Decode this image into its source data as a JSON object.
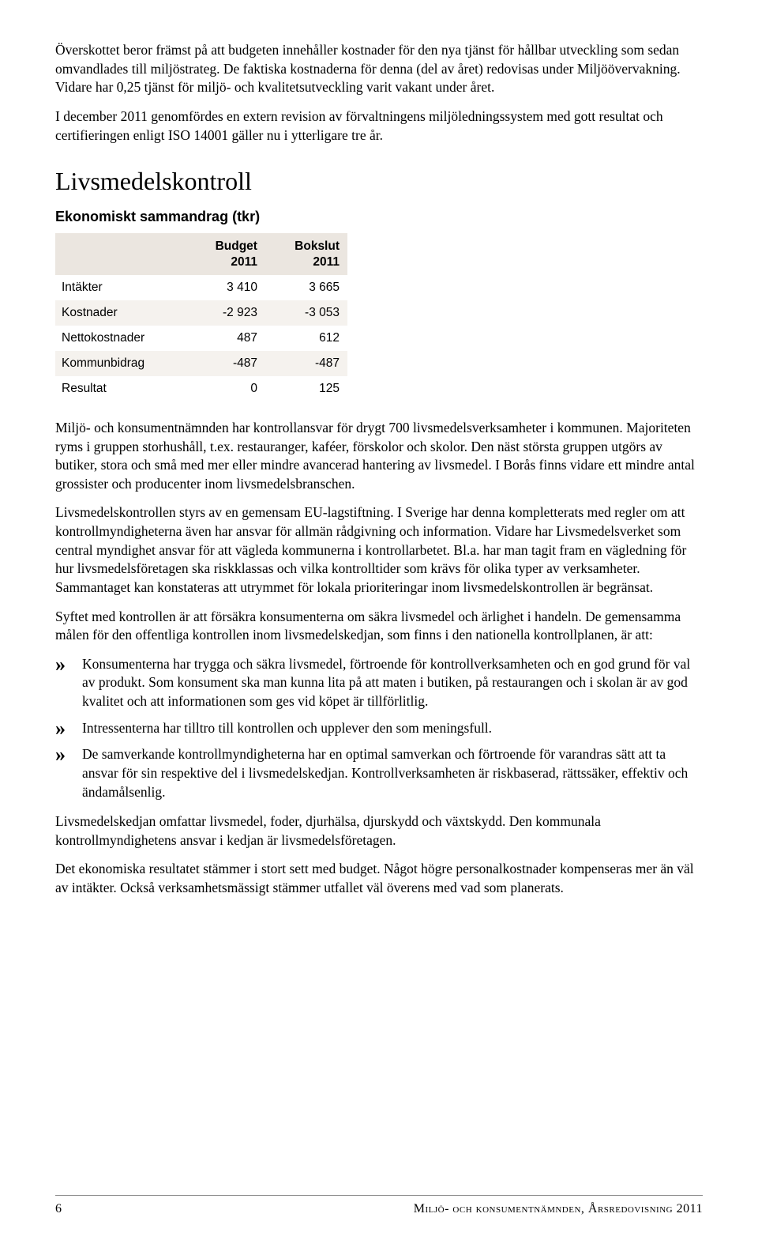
{
  "intro_paragraphs": {
    "p1": "Överskottet beror främst på att budgeten innehåller kostnader för den nya tjänst för hållbar utveckling som sedan omvandlades till miljöstrateg. De faktiska kostnaderna för denna (del av året) redovisas under Miljöövervakning. Vidare har 0,25 tjänst för miljö- och kvalitetsutveckling varit vakant under året.",
    "p2": "I december 2011 genomfördes en extern revision av förvaltningens miljöledningssystem med gott resultat och certifieringen enligt ISO 14001 gäller nu i ytterligare tre år."
  },
  "section": {
    "heading": "Livsmedelskontroll",
    "table_heading": "Ekonomiskt sammandrag (tkr)",
    "table": {
      "col1_line1": "Budget",
      "col1_line2": "2011",
      "col2_line1": "Bokslut",
      "col2_line2": "2011",
      "rows": [
        {
          "label": "Intäkter",
          "c1": "3 410",
          "c2": "3 665"
        },
        {
          "label": "Kostnader",
          "c1": "-2 923",
          "c2": "-3 053"
        },
        {
          "label": "Nettokostnader",
          "c1": "487",
          "c2": "612"
        },
        {
          "label": "Kommunbidrag",
          "c1": "-487",
          "c2": "-487"
        },
        {
          "label": "Resultat",
          "c1": "0",
          "c2": "125"
        }
      ],
      "header_bg": "#ebe6e0",
      "alt_row_bg": "#f5f2ee"
    },
    "p1": "Miljö- och konsumentnämnden har kontrollansvar för drygt 700 livsmedelsverksamheter i kommunen. Majoriteten ryms i gruppen storhushåll, t.ex. restauranger, kaféer, förskolor och skolor. Den näst största gruppen utgörs av butiker, stora och små med mer eller mindre avancerad hantering av livsmedel. I Borås finns vidare ett mindre antal grossister och producenter inom livsmedelsbranschen.",
    "p2": "Livsmedelskontrollen styrs av en gemensam EU-lagstiftning. I Sverige har denna kompletterats med regler om att kontrollmyndigheterna även har ansvar för allmän rådgivning och information. Vidare har Livsmedelsverket som central myndighet ansvar för att vägleda kommunerna i kontrollarbetet. Bl.a. har man tagit fram en vägledning för hur livsmedelsföretagen ska riskklassas och vilka kontrolltider som krävs för olika typer av verksamheter. Sammantaget kan konstateras att utrymmet för lokala prioriteringar inom livsmedelskontrollen är begränsat.",
    "p3": "Syftet med kontrollen är att försäkra konsumenterna om säkra livsmedel och ärlighet i handeln. De gemensamma målen för den offentliga kontrollen inom livsmedelskedjan, som finns i den nationella kontrollplanen, är att:",
    "bullets": [
      "Konsumenterna har trygga och säkra livsmedel, förtroende för kontrollverksamheten och en god grund för val av produkt. Som konsument ska man kunna lita på att maten i butiken, på restaurangen och i skolan är av god kvalitet och att informationen som ges vid köpet är tillförlitlig.",
      "Intressenterna har tilltro till kontrollen och upplever den som meningsfull.",
      "De samverkande kontrollmyndigheterna har en optimal samverkan och förtroende för varandras sätt att ta ansvar för sin respektive del i livsmedelskedjan. Kontrollverksamheten är riskbaserad, rättssäker, effektiv och ändamålsenlig."
    ],
    "p4": "Livsmedelskedjan omfattar livsmedel, foder, djurhälsa, djurskydd och växtskydd. Den kommunala kontrollmyndighetens ansvar i kedjan är livsmedelsföretagen.",
    "p5": "Det ekonomiska resultatet stämmer i stort sett med budget. Något högre personalkostnader kompenseras mer än väl av intäkter. Också verksamhetsmässigt stämmer utfallet väl överens med vad som planerats."
  },
  "footer": {
    "page": "6",
    "title": "Miljö- och konsumentnämnden, Årsredovisning 2011"
  }
}
